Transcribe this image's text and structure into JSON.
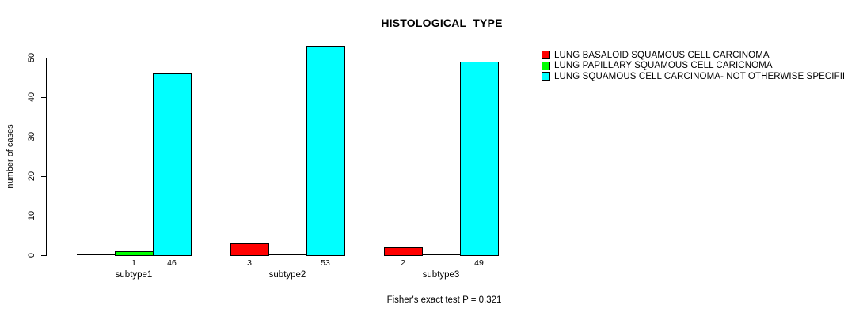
{
  "figure": {
    "title": "HISTOLOGICAL_TYPE",
    "y_axis_label": "number of cases",
    "footer_annotation": "Fisher's exact test P = 0.321"
  },
  "chart_data": {
    "type": "bar",
    "title": "HISTOLOGICAL_TYPE",
    "xlabel": "",
    "ylabel": "number of cases",
    "categories": [
      "subtype1",
      "subtype2",
      "subtype3"
    ],
    "series": [
      {
        "name": "LUNG BASALOID SQUAMOUS CELL CARCINOMA",
        "color": "#FF0000",
        "values": [
          0,
          3,
          2
        ]
      },
      {
        "name": "LUNG PAPILLARY SQUAMOUS CELL CARICNOMA",
        "color": "#00FF00",
        "values": [
          1,
          0,
          0
        ]
      },
      {
        "name": "LUNG SQUAMOUS CELL CARCINOMA- NOT OTHERWISE SPECIFIED",
        "color": "#00FFFF",
        "values": [
          46,
          53,
          49
        ]
      }
    ],
    "bar_value_labels": [
      [
        "",
        "1",
        "46"
      ],
      [
        "3",
        "",
        "53"
      ],
      [
        "2",
        "",
        "49"
      ]
    ],
    "yticks": [
      0,
      10,
      20,
      30,
      40,
      50
    ],
    "ylim": [
      0,
      53
    ],
    "grid": false,
    "legend_position": "right",
    "bar_outline_color": "#000000",
    "annotation": "Fisher's exact test P = 0.321"
  }
}
